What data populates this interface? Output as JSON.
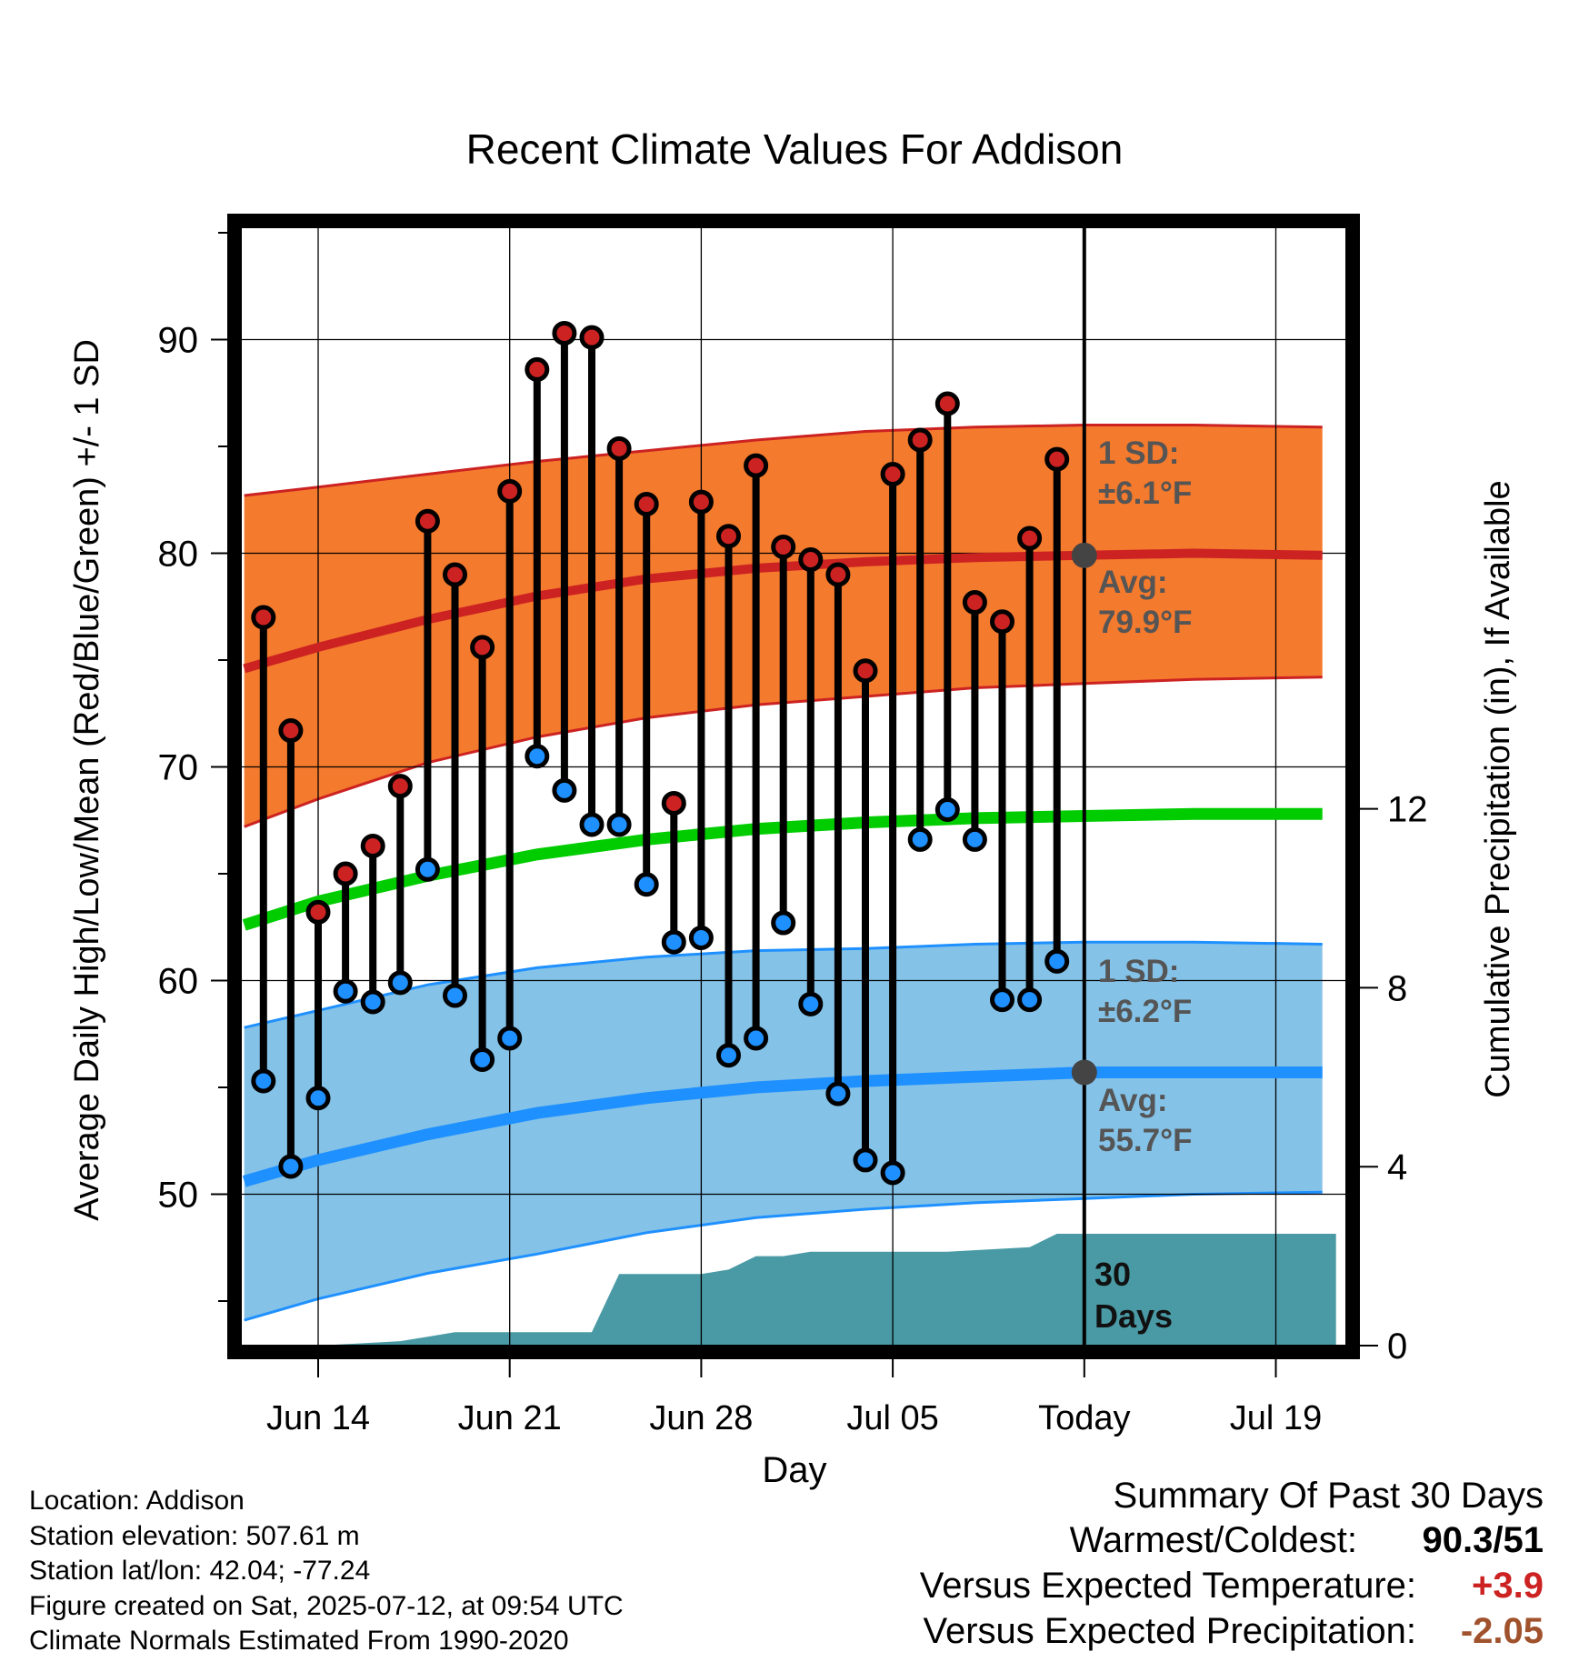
{
  "chart_data": {
    "type": "line",
    "title": "Recent Climate Values For Addison",
    "xlabel": "Day",
    "ylabel": "Average Daily High/Low/Mean (Red/Blue/Green) +/- 1 SD",
    "y2label": "Cumulative Precipitation (in), If Available",
    "ylim": [
      43,
      96
    ],
    "y_ticks": [
      50,
      60,
      70,
      80,
      90
    ],
    "y2lim": [
      0,
      21
    ],
    "y2_ticks": [
      0,
      4,
      8,
      12
    ],
    "xlim": [
      -3.2,
      37.2
    ],
    "x_ticks": [
      {
        "day": 0,
        "label": "Jun 14"
      },
      {
        "day": 7,
        "label": "Jun 21"
      },
      {
        "day": 14,
        "label": "Jun 28"
      },
      {
        "day": 21,
        "label": "Jul 05"
      },
      {
        "day": 28,
        "label": "Today"
      },
      {
        "day": 35,
        "label": "Jul 19"
      }
    ],
    "today_day": 28,
    "days": [
      -2,
      -1,
      0,
      1,
      2,
      3,
      4,
      5,
      6,
      7,
      8,
      9,
      10,
      11,
      12,
      13,
      14,
      15,
      16,
      17,
      18,
      19,
      20,
      21,
      22,
      23,
      24,
      25,
      26,
      27
    ],
    "highs": [
      77.0,
      71.7,
      63.2,
      65.0,
      66.3,
      69.1,
      81.5,
      79.0,
      75.6,
      82.9,
      88.6,
      90.3,
      90.1,
      84.9,
      82.3,
      68.3,
      82.4,
      80.8,
      84.1,
      80.3,
      79.7,
      79.0,
      74.5,
      83.7,
      85.3,
      87.0,
      77.7,
      76.8,
      80.7,
      84.4
    ],
    "lows": [
      55.3,
      51.3,
      54.5,
      59.5,
      59.0,
      59.9,
      65.2,
      59.3,
      56.3,
      57.3,
      70.5,
      68.9,
      67.3,
      67.3,
      64.5,
      61.8,
      62.0,
      56.5,
      57.3,
      62.7,
      58.9,
      54.7,
      51.6,
      51.0,
      66.6,
      68.0,
      66.6,
      59.1,
      59.1,
      60.9
    ],
    "normal_high": {
      "days": [
        -2.7,
        0,
        4,
        8,
        12,
        16,
        20,
        24,
        28,
        32,
        36.7
      ],
      "mean": [
        74.6,
        75.6,
        76.9,
        78.0,
        78.8,
        79.3,
        79.6,
        79.8,
        79.9,
        80.0,
        79.9
      ],
      "upper": [
        82.7,
        83.1,
        83.7,
        84.3,
        84.8,
        85.3,
        85.7,
        85.9,
        86.0,
        86.0,
        85.9
      ],
      "lower": [
        67.2,
        68.5,
        70.2,
        71.4,
        72.3,
        72.9,
        73.3,
        73.7,
        73.9,
        74.1,
        74.2
      ]
    },
    "normal_mean": {
      "days": [
        -2.7,
        0,
        4,
        8,
        12,
        16,
        20,
        24,
        28,
        32,
        36.7
      ],
      "mean": [
        62.6,
        63.7,
        64.9,
        65.9,
        66.6,
        67.1,
        67.4,
        67.6,
        67.7,
        67.8,
        67.8
      ]
    },
    "normal_low": {
      "days": [
        -2.7,
        0,
        4,
        8,
        12,
        16,
        20,
        24,
        28,
        32,
        36.7
      ],
      "mean": [
        50.6,
        51.6,
        52.8,
        53.8,
        54.5,
        55.0,
        55.3,
        55.5,
        55.7,
        55.7,
        55.7
      ],
      "upper": [
        57.8,
        58.6,
        59.8,
        60.6,
        61.1,
        61.4,
        61.5,
        61.7,
        61.8,
        61.8,
        61.7
      ],
      "lower": [
        44.1,
        45.1,
        46.3,
        47.2,
        48.2,
        48.9,
        49.3,
        49.6,
        49.8,
        50.0,
        50.1
      ]
    },
    "precip_cumulative": {
      "days": [
        -2.7,
        0,
        3,
        4,
        5,
        10,
        11,
        14,
        15,
        16,
        17,
        18,
        22,
        23,
        26,
        27,
        28,
        37.2
      ],
      "values": [
        0,
        0,
        0.1,
        0.2,
        0.3,
        0.3,
        1.6,
        1.6,
        1.7,
        2.0,
        2.0,
        2.1,
        2.1,
        2.1,
        2.2,
        2.5,
        2.5,
        2.5
      ]
    },
    "annotations": {
      "high_sd_head": "1 SD:",
      "high_sd_val": "±6.1°F",
      "high_avg_head": "Avg:",
      "high_avg_val": "79.9°F",
      "low_sd_head": "1 SD:",
      "low_sd_val": "±6.2°F",
      "low_avg_head": "Avg:",
      "low_avg_val": "55.7°F",
      "days_label_1": "30",
      "days_label_2": "Days"
    },
    "colors": {
      "high_band": "#f47a2d",
      "high_line": "#cc2222",
      "low_band": "#84c2e8",
      "low_line": "#1e90ff",
      "mean_line": "#00cc00",
      "precip": "#4a9aa5",
      "high_dot": "#cc2222",
      "low_dot": "#1e90ff",
      "annotation": "#555555"
    }
  },
  "footer": {
    "location": "Location: Addison",
    "elevation": "Station elevation: 507.61 m",
    "latlon": "Station lat/lon: 42.04; -77.24",
    "created": "Figure created on Sat, 2025-07-12, at 09:54 UTC",
    "normals": "Climate Normals Estimated From 1990-2020"
  },
  "summary": {
    "title": "Summary Of Past 30 Days",
    "warmest_label": "Warmest/Coldest:",
    "warmest_value": "90.3/51",
    "temp_label": "Versus Expected Temperature:",
    "temp_value": "+3.9",
    "temp_color": "#cc2222",
    "precip_label": "Versus Expected Precipitation:",
    "precip_value": "-2.05",
    "precip_color": "#a0522d"
  }
}
